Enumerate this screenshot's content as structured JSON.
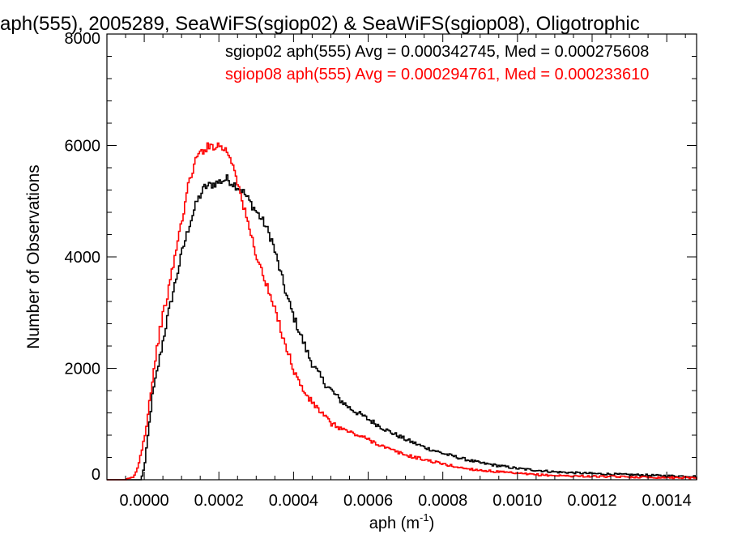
{
  "chart_data": {
    "type": "line",
    "title": "aph(555), 2005289, SeaWiFS(sgiop02) & SeaWiFS(sgiop08), Oligotrophic",
    "xlabel": "aph (m",
    "xlabel_sup": "-1",
    "xlabel_close": ")",
    "ylabel": "Number of Observations",
    "xlim": [
      -0.0001,
      0.00148
    ],
    "ylim": [
      0,
      8000
    ],
    "x_ticks": [
      0.0,
      0.0002,
      0.0004,
      0.0006,
      0.0008,
      0.001,
      0.0012,
      0.0014
    ],
    "x_tick_labels": [
      "0.0000",
      "0.0002",
      "0.0004",
      "0.0006",
      "0.0008",
      "0.0010",
      "0.0012",
      "0.0014"
    ],
    "y_ticks": [
      0,
      2000,
      4000,
      6000,
      8000
    ],
    "y_tick_labels": [
      "0",
      "2000",
      "4000",
      "6000",
      "8000"
    ],
    "legend_placement": "top-right",
    "grid": false,
    "series": [
      {
        "name": "sgiop02",
        "label": "sgiop02 aph(555) Avg = 0.000342745, Med = 0.000275608",
        "color": "#000000",
        "x": [
          -0.0001,
          -5e-05,
          -1e-05,
          0.0,
          2e-05,
          4e-05,
          6e-05,
          8e-05,
          0.0001,
          0.00012,
          0.00014,
          0.00016,
          0.00018,
          0.0002,
          0.00022,
          0.00024,
          0.00026,
          0.00028,
          0.0003,
          0.00032,
          0.00034,
          0.00036,
          0.00038,
          0.0004,
          0.00042,
          0.00044,
          0.00046,
          0.00048,
          0.0005,
          0.00052,
          0.00055,
          0.0006,
          0.00065,
          0.0007,
          0.00075,
          0.0008,
          0.00085,
          0.0009,
          0.00095,
          0.001,
          0.00105,
          0.0011,
          0.0012,
          0.0013,
          0.0014,
          0.00148
        ],
        "y": [
          0,
          0,
          0,
          300,
          1500,
          2200,
          2900,
          3500,
          4100,
          4600,
          5000,
          5250,
          5300,
          5350,
          5400,
          5300,
          5200,
          5000,
          4800,
          4600,
          4300,
          3800,
          3300,
          2900,
          2550,
          2200,
          1950,
          1750,
          1600,
          1450,
          1280,
          1080,
          880,
          720,
          580,
          470,
          380,
          300,
          250,
          200,
          170,
          140,
          110,
          90,
          70,
          60
        ]
      },
      {
        "name": "sgiop08",
        "label": "sgiop08 aph(555) Avg = 0.000294761, Med = 0.000233610",
        "color": "#ff0000",
        "x": [
          -0.0001,
          -5e-05,
          -3e-05,
          -2e-05,
          0.0,
          2e-05,
          4e-05,
          6e-05,
          8e-05,
          0.0001,
          0.00012,
          0.00014,
          0.00016,
          0.00018,
          0.0002,
          0.00022,
          0.00024,
          0.00026,
          0.00028,
          0.0003,
          0.00032,
          0.00034,
          0.00036,
          0.00038,
          0.0004,
          0.00042,
          0.00044,
          0.00046,
          0.00048,
          0.0005,
          0.00055,
          0.0006,
          0.00065,
          0.0007,
          0.00075,
          0.0008,
          0.00085,
          0.0009,
          0.00095,
          0.001,
          0.00105,
          0.0011,
          0.0012,
          0.0013,
          0.0014,
          0.00148
        ],
        "y": [
          0,
          0,
          50,
          200,
          800,
          1800,
          2700,
          3300,
          4000,
          4700,
          5400,
          5800,
          5950,
          6000,
          6000,
          5900,
          5600,
          5000,
          4500,
          4000,
          3600,
          3200,
          2800,
          2350,
          1950,
          1650,
          1450,
          1300,
          1150,
          1000,
          850,
          720,
          560,
          440,
          360,
          280,
          210,
          170,
          140,
          110,
          90,
          75,
          60,
          50,
          40,
          35
        ]
      }
    ]
  }
}
